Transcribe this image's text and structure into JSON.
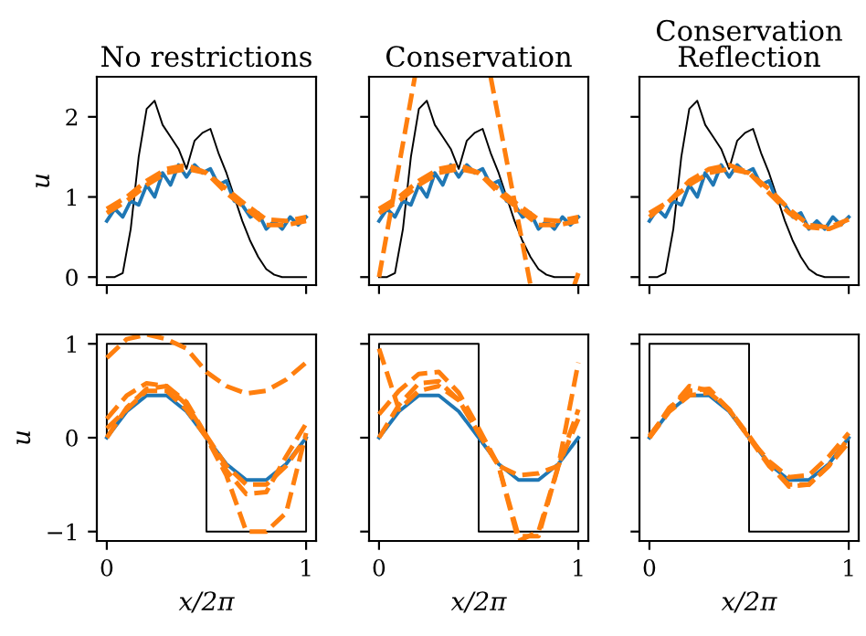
{
  "chart_data": [
    {
      "type": "line",
      "title": "No restrictions",
      "ylabel": "u",
      "xlim": [
        -0.05,
        1.05
      ],
      "ylim": [
        -0.1,
        2.5
      ],
      "xticks": [
        0,
        1
      ],
      "yticks": [
        0,
        1,
        2
      ],
      "tick_labels": "y",
      "line_style": "solid",
      "series": [
        {
          "color": "#000000",
          "x": [
            0,
            0.04,
            0.08,
            0.12,
            0.16,
            0.2,
            0.24,
            0.28,
            0.32,
            0.36,
            0.4,
            0.44,
            0.48,
            0.52,
            0.56,
            0.6,
            0.64,
            0.68,
            0.72,
            0.76,
            0.8,
            0.84,
            0.88,
            0.92,
            0.96,
            1.0
          ],
          "values": [
            0,
            0,
            0.05,
            0.6,
            1.5,
            2.1,
            2.2,
            1.9,
            1.75,
            1.6,
            1.35,
            1.7,
            1.8,
            1.85,
            1.55,
            1.3,
            1.0,
            0.7,
            0.45,
            0.25,
            0.1,
            0.03,
            0,
            0,
            0,
            0
          ]
        },
        {
          "color": "#1f77b4",
          "x": [
            0,
            0.04,
            0.08,
            0.12,
            0.16,
            0.2,
            0.24,
            0.28,
            0.32,
            0.36,
            0.4,
            0.44,
            0.48,
            0.52,
            0.56,
            0.6,
            0.64,
            0.68,
            0.72,
            0.76,
            0.8,
            0.84,
            0.88,
            0.92,
            0.96,
            1.0
          ],
          "values": [
            0.7,
            0.85,
            0.75,
            0.95,
            0.9,
            1.15,
            1.0,
            1.3,
            1.15,
            1.4,
            1.25,
            1.4,
            1.3,
            1.35,
            1.15,
            1.2,
            0.95,
            0.9,
            0.75,
            0.8,
            0.6,
            0.7,
            0.6,
            0.75,
            0.65,
            0.75
          ]
        },
        {
          "color": "#ff7f0e",
          "line_style": "dashed",
          "x": [
            0,
            0.1,
            0.2,
            0.3,
            0.4,
            0.5,
            0.6,
            0.7,
            0.8,
            0.9,
            1.0
          ],
          "values": [
            0.8,
            0.95,
            1.15,
            1.3,
            1.35,
            1.3,
            1.1,
            0.9,
            0.72,
            0.7,
            0.75
          ]
        },
        {
          "color": "#ff7f0e",
          "line_style": "dashed",
          "x": [
            0,
            0.1,
            0.2,
            0.3,
            0.4,
            0.5,
            0.6,
            0.7,
            0.8,
            0.9,
            1.0
          ],
          "values": [
            0.85,
            1.0,
            1.2,
            1.35,
            1.4,
            1.3,
            1.05,
            0.85,
            0.65,
            0.65,
            0.7
          ]
        }
      ]
    },
    {
      "type": "line",
      "title": "Conservation",
      "xlim": [
        -0.05,
        1.05
      ],
      "ylim": [
        -0.1,
        2.5
      ],
      "xticks": [
        0,
        1
      ],
      "yticks": [
        0,
        1,
        2
      ],
      "tick_labels": false,
      "line_style": "solid",
      "series": [
        {
          "color": "#000000",
          "x": [
            0,
            0.04,
            0.08,
            0.12,
            0.16,
            0.2,
            0.24,
            0.28,
            0.32,
            0.36,
            0.4,
            0.44,
            0.48,
            0.52,
            0.56,
            0.6,
            0.64,
            0.68,
            0.72,
            0.76,
            0.8,
            0.84,
            0.88,
            0.92,
            0.96,
            1.0
          ],
          "values": [
            0,
            0,
            0.05,
            0.6,
            1.5,
            2.1,
            2.2,
            1.9,
            1.75,
            1.6,
            1.35,
            1.7,
            1.8,
            1.85,
            1.55,
            1.3,
            1.0,
            0.7,
            0.45,
            0.25,
            0.1,
            0.03,
            0,
            0,
            0,
            0
          ]
        },
        {
          "color": "#1f77b4",
          "x": [
            0,
            0.04,
            0.08,
            0.12,
            0.16,
            0.2,
            0.24,
            0.28,
            0.32,
            0.36,
            0.4,
            0.44,
            0.48,
            0.52,
            0.56,
            0.6,
            0.64,
            0.68,
            0.72,
            0.76,
            0.8,
            0.84,
            0.88,
            0.92,
            0.96,
            1.0
          ],
          "values": [
            0.7,
            0.85,
            0.75,
            0.95,
            0.9,
            1.15,
            1.0,
            1.3,
            1.15,
            1.4,
            1.25,
            1.4,
            1.3,
            1.35,
            1.15,
            1.2,
            0.95,
            0.9,
            0.75,
            0.8,
            0.6,
            0.7,
            0.6,
            0.75,
            0.65,
            0.75
          ]
        },
        {
          "color": "#ff7f0e",
          "line_style": "dashed",
          "x": [
            0,
            0.1,
            0.2,
            0.3,
            0.4,
            0.5,
            0.6,
            0.7,
            0.8,
            0.9,
            1.0
          ],
          "values": [
            0.8,
            0.95,
            1.15,
            1.3,
            1.35,
            1.3,
            1.1,
            0.9,
            0.72,
            0.7,
            0.75
          ]
        },
        {
          "color": "#ff7f0e",
          "line_style": "dashed",
          "x": [
            0,
            0.1,
            0.2,
            0.3,
            0.4,
            0.5,
            0.6,
            0.7,
            0.8,
            0.9,
            1.0
          ],
          "values": [
            0.85,
            1.0,
            1.2,
            1.35,
            1.4,
            1.3,
            1.05,
            0.85,
            0.65,
            0.65,
            0.7
          ]
        },
        {
          "color": "#ff7f0e",
          "line_style": "dashed",
          "x": [
            0,
            0.18
          ],
          "values": [
            0.0,
            2.5
          ]
        },
        {
          "color": "#ff7f0e",
          "line_style": "dashed",
          "x": [
            0.56,
            0.76
          ],
          "values": [
            2.5,
            -0.1
          ]
        },
        {
          "color": "#ff7f0e",
          "line_style": "dashed",
          "x": [
            0.98,
            1.0
          ],
          "values": [
            -0.1,
            0.05
          ]
        }
      ]
    },
    {
      "type": "line",
      "title": "Conservation\nReflection",
      "xlim": [
        -0.05,
        1.05
      ],
      "ylim": [
        -0.1,
        2.5
      ],
      "xticks": [
        0,
        1
      ],
      "yticks": [
        0,
        1,
        2
      ],
      "tick_labels": false,
      "line_style": "solid",
      "series": [
        {
          "color": "#000000",
          "x": [
            0,
            0.04,
            0.08,
            0.12,
            0.16,
            0.2,
            0.24,
            0.28,
            0.32,
            0.36,
            0.4,
            0.44,
            0.48,
            0.52,
            0.56,
            0.6,
            0.64,
            0.68,
            0.72,
            0.76,
            0.8,
            0.84,
            0.88,
            0.92,
            0.96,
            1.0
          ],
          "values": [
            0,
            0,
            0.05,
            0.6,
            1.5,
            2.1,
            2.2,
            1.9,
            1.75,
            1.6,
            1.35,
            1.7,
            1.8,
            1.85,
            1.55,
            1.3,
            1.0,
            0.7,
            0.45,
            0.25,
            0.1,
            0.03,
            0,
            0,
            0,
            0
          ]
        },
        {
          "color": "#1f77b4",
          "x": [
            0,
            0.04,
            0.08,
            0.12,
            0.16,
            0.2,
            0.24,
            0.28,
            0.32,
            0.36,
            0.4,
            0.44,
            0.48,
            0.52,
            0.56,
            0.6,
            0.64,
            0.68,
            0.72,
            0.76,
            0.8,
            0.84,
            0.88,
            0.92,
            0.96,
            1.0
          ],
          "values": [
            0.7,
            0.85,
            0.75,
            0.95,
            0.9,
            1.15,
            1.0,
            1.3,
            1.15,
            1.4,
            1.25,
            1.4,
            1.3,
            1.35,
            1.15,
            1.2,
            0.95,
            0.9,
            0.75,
            0.8,
            0.6,
            0.7,
            0.6,
            0.75,
            0.65,
            0.75
          ]
        },
        {
          "color": "#ff7f0e",
          "line_style": "dashed",
          "x": [
            0,
            0.1,
            0.2,
            0.3,
            0.4,
            0.5,
            0.6,
            0.7,
            0.8,
            0.9,
            1.0
          ],
          "values": [
            0.8,
            0.95,
            1.15,
            1.3,
            1.35,
            1.3,
            1.1,
            0.85,
            0.65,
            0.62,
            0.72
          ]
        },
        {
          "color": "#ff7f0e",
          "line_style": "dashed",
          "x": [
            0,
            0.1,
            0.2,
            0.3,
            0.4,
            0.5,
            0.6,
            0.7,
            0.8,
            0.9,
            1.0
          ],
          "values": [
            0.75,
            0.95,
            1.2,
            1.35,
            1.4,
            1.3,
            1.05,
            0.8,
            0.62,
            0.6,
            0.7
          ]
        }
      ]
    },
    {
      "type": "line",
      "ylabel": "u",
      "xlabel": "x/2π",
      "xlim": [
        -0.05,
        1.05
      ],
      "ylim": [
        -1.1,
        1.1
      ],
      "xticks": [
        0,
        1
      ],
      "yticks": [
        -1,
        0,
        1
      ],
      "line_style": "solid",
      "series": [
        {
          "color": "#000000",
          "x": [
            0,
            0,
            0.5,
            0.5,
            1,
            1
          ],
          "values": [
            0,
            1,
            1,
            -1,
            -1,
            0
          ]
        },
        {
          "color": "#1f77b4",
          "x": [
            0,
            0.1,
            0.2,
            0.3,
            0.4,
            0.5,
            0.6,
            0.7,
            0.8,
            0.9,
            1.0
          ],
          "values": [
            0,
            0.28,
            0.45,
            0.45,
            0.28,
            0,
            -0.28,
            -0.45,
            -0.45,
            -0.28,
            0
          ]
        },
        {
          "color": "#ff7f0e",
          "line_style": "dashed",
          "x": [
            0,
            0.1,
            0.2,
            0.3,
            0.4,
            0.5,
            0.6,
            0.7,
            0.8,
            0.9,
            1.0
          ],
          "values": [
            0,
            0.32,
            0.52,
            0.55,
            0.35,
            0.02,
            -0.3,
            -0.5,
            -0.5,
            -0.3,
            0
          ]
        },
        {
          "color": "#ff7f0e",
          "line_style": "dashed",
          "x": [
            0,
            0.1,
            0.2,
            0.3,
            0.4,
            0.5,
            0.6,
            0.7,
            0.8,
            0.9,
            1.0
          ],
          "values": [
            0.2,
            0.45,
            0.58,
            0.55,
            0.38,
            0.02,
            -0.35,
            -0.6,
            -0.58,
            -0.2,
            0.15
          ]
        },
        {
          "color": "#ff7f0e",
          "line_style": "dashed",
          "x": [
            0,
            0.1,
            0.2,
            0.3,
            0.4,
            0.5,
            0.6,
            0.7,
            0.8,
            0.9,
            1.0
          ],
          "values": [
            0.85,
            1.05,
            1.1,
            1.05,
            0.95,
            0.7,
            0.55,
            0.47,
            0.5,
            0.62,
            0.8
          ]
        },
        {
          "color": "#ff7f0e",
          "line_style": "dashed",
          "x": [
            0,
            0.1,
            0.2,
            0.3,
            0.4,
            0.5,
            0.6,
            0.7,
            0.8,
            0.9,
            1.0
          ],
          "values": [
            0.1,
            0.3,
            0.5,
            0.5,
            0.3,
            0,
            -0.4,
            -1.0,
            -1.0,
            -0.8,
            0.05
          ]
        }
      ]
    },
    {
      "type": "line",
      "xlabel": "x/2π",
      "xlim": [
        -0.05,
        1.05
      ],
      "ylim": [
        -1.1,
        1.1
      ],
      "xticks": [
        0,
        1
      ],
      "yticks": [
        -1,
        0,
        1
      ],
      "tick_labels": "x",
      "line_style": "solid",
      "series": [
        {
          "color": "#000000",
          "x": [
            0,
            0,
            0.5,
            0.5,
            1,
            1
          ],
          "values": [
            0,
            1,
            1,
            -1,
            -1,
            0
          ]
        },
        {
          "color": "#1f77b4",
          "x": [
            0,
            0.1,
            0.2,
            0.3,
            0.4,
            0.5,
            0.6,
            0.7,
            0.8,
            0.9,
            1.0
          ],
          "values": [
            0,
            0.28,
            0.45,
            0.45,
            0.28,
            0,
            -0.28,
            -0.45,
            -0.45,
            -0.28,
            0
          ]
        },
        {
          "color": "#ff7f0e",
          "line_style": "dashed",
          "x": [
            0,
            0.1,
            0.2,
            0.3,
            0.4,
            0.5,
            0.6,
            0.7,
            0.8,
            0.9,
            1.0
          ],
          "values": [
            0,
            0.35,
            0.58,
            0.6,
            0.4,
            0.05,
            -0.3,
            -0.4,
            -0.38,
            -0.3,
            0.2
          ]
        },
        {
          "color": "#ff7f0e",
          "line_style": "dashed",
          "x": [
            0,
            0.1,
            0.2,
            0.3,
            0.4,
            0.5,
            0.6,
            0.7,
            0.8,
            0.9,
            1.0
          ],
          "values": [
            0.25,
            0.5,
            0.68,
            0.7,
            0.48,
            0.1,
            -0.3,
            -1.05,
            -1.05,
            -0.3,
            0.8
          ]
        },
        {
          "color": "#ff7f0e",
          "line_style": "dashed",
          "x": [
            0,
            0.1,
            0.2,
            0.3,
            0.4,
            0.5,
            0.6,
            0.7,
            0.8,
            0.9,
            1.0
          ],
          "values": [
            0.95,
            0.3,
            0.5,
            0.55,
            0.4,
            0.05,
            -0.3,
            -1.1,
            -1.0,
            -0.3,
            0.3
          ]
        }
      ]
    },
    {
      "type": "line",
      "xlabel": "x/2π",
      "xlim": [
        -0.05,
        1.05
      ],
      "ylim": [
        -1.1,
        1.1
      ],
      "xticks": [
        0,
        1
      ],
      "yticks": [
        -1,
        0,
        1
      ],
      "tick_labels": "x",
      "line_style": "solid",
      "series": [
        {
          "color": "#000000",
          "x": [
            0,
            0,
            0.5,
            0.5,
            1,
            1
          ],
          "values": [
            0,
            1,
            1,
            -1,
            -1,
            0
          ]
        },
        {
          "color": "#1f77b4",
          "x": [
            0,
            0.1,
            0.2,
            0.3,
            0.4,
            0.5,
            0.6,
            0.7,
            0.8,
            0.9,
            1.0
          ],
          "values": [
            0,
            0.28,
            0.45,
            0.45,
            0.28,
            0,
            -0.28,
            -0.45,
            -0.45,
            -0.28,
            0
          ]
        },
        {
          "color": "#ff7f0e",
          "line_style": "dashed",
          "x": [
            0,
            0.1,
            0.2,
            0.3,
            0.4,
            0.5,
            0.6,
            0.7,
            0.8,
            0.9,
            1.0
          ],
          "values": [
            0,
            0.32,
            0.5,
            0.52,
            0.3,
            0,
            -0.3,
            -0.5,
            -0.5,
            -0.3,
            0
          ]
        },
        {
          "color": "#ff7f0e",
          "line_style": "dashed",
          "x": [
            0,
            0.1,
            0.2,
            0.3,
            0.4,
            0.5,
            0.6,
            0.7,
            0.8,
            0.9,
            1.0
          ],
          "values": [
            0.02,
            0.3,
            0.55,
            0.5,
            0.3,
            0.02,
            -0.28,
            -0.52,
            -0.5,
            -0.3,
            -0.05
          ]
        },
        {
          "color": "#ff7f0e",
          "line_style": "dashed",
          "x": [
            0,
            0.1,
            0.2,
            0.3,
            0.4,
            0.5,
            0.6,
            0.7,
            0.8,
            0.9,
            1.0
          ],
          "values": [
            0,
            0.28,
            0.45,
            0.48,
            0.3,
            0,
            -0.25,
            -0.42,
            -0.4,
            -0.2,
            0.05
          ]
        }
      ]
    }
  ]
}
